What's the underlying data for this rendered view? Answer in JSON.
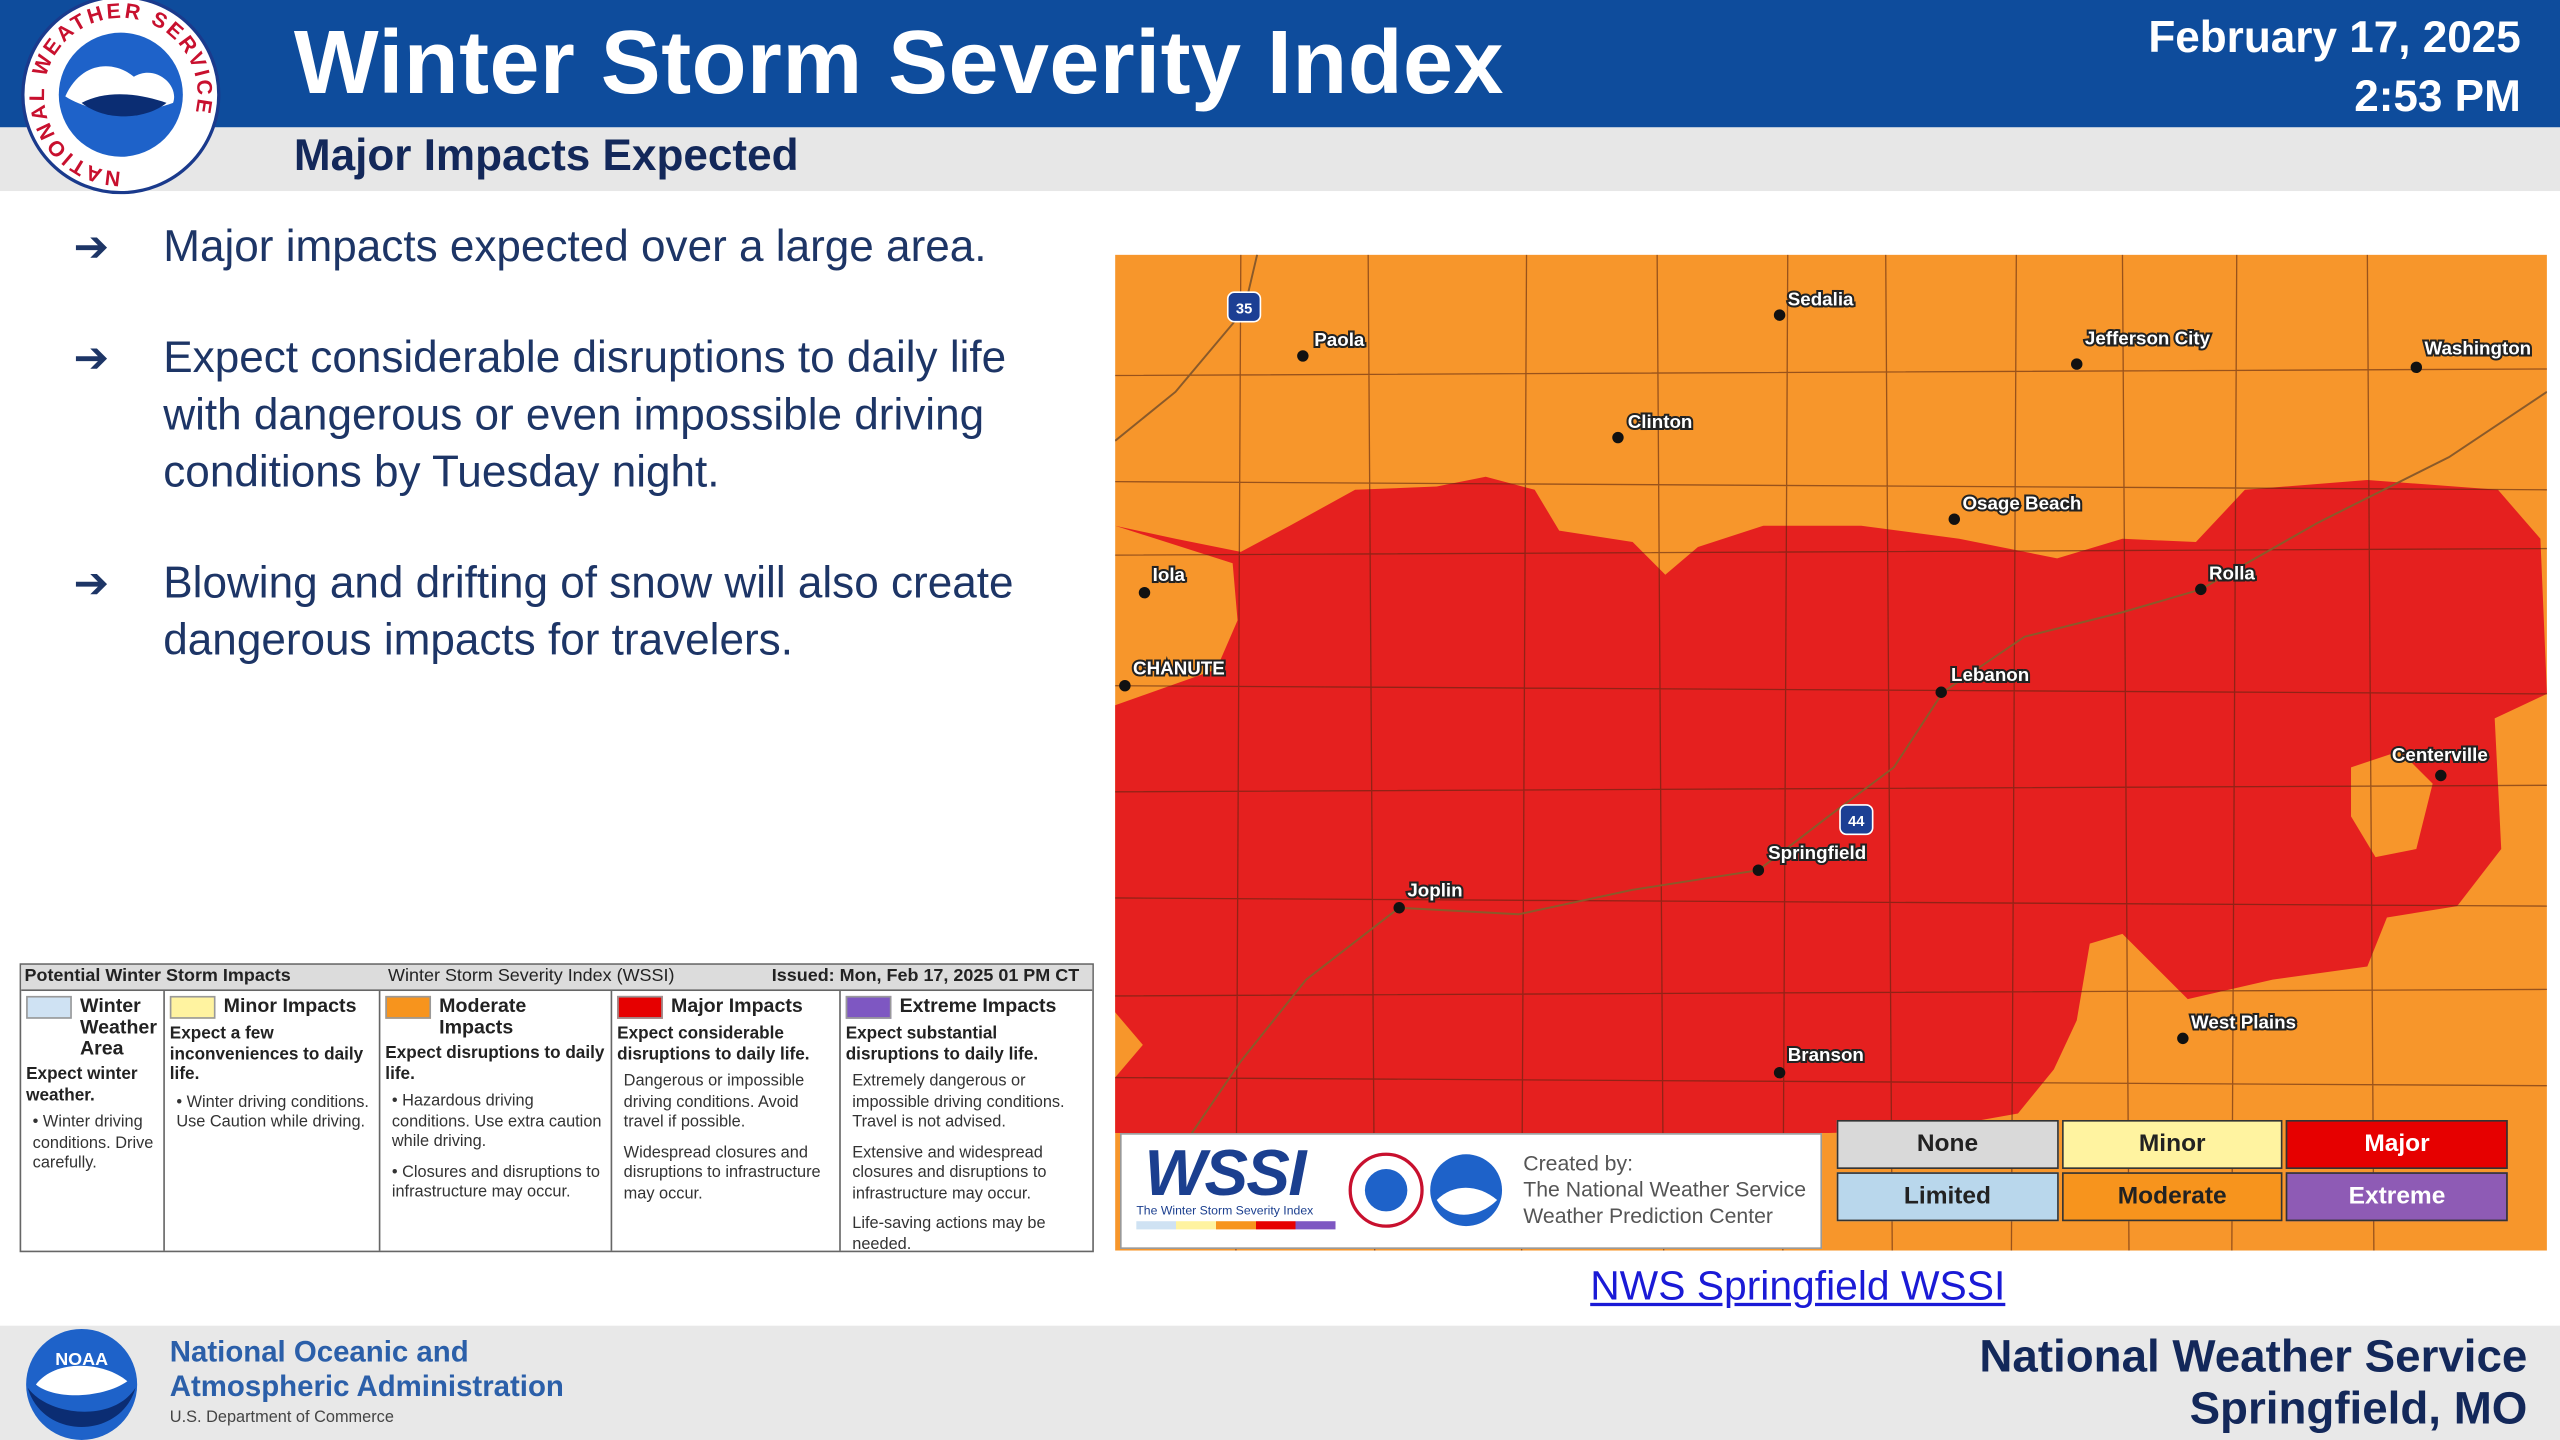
{
  "header": {
    "title": "Winter Storm Severity Index",
    "date": "February 17, 2025",
    "time": "2:53 PM",
    "subtitle": "Major Impacts Expected",
    "logo_text": "NATIONAL WEATHER SERVICE"
  },
  "bullets": [
    "Major impacts expected over a large area.",
    "Expect considerable disruptions to daily life with dangerous or even impossible driving conditions by Tuesday night.",
    "Blowing and drifting of snow will also create dangerous impacts for travelers."
  ],
  "impact_table": {
    "title": "Potential Winter Storm Impacts",
    "subtitle": "Winter Storm Severity Index (WSSI)",
    "issued": "Issued: Mon, Feb 17, 2025 01 PM CT",
    "columns": [
      {
        "title": "Winter Weather Area",
        "summary": "Expect winter weather.",
        "bullets": [
          "• Winter driving conditions. Drive carefully."
        ]
      },
      {
        "title": "Minor Impacts",
        "summary": "Expect a few inconveniences to daily life.",
        "bullets": [
          "• Winter driving conditions. Use Caution while driving."
        ]
      },
      {
        "title": "Moderate Impacts",
        "summary": "Expect disruptions to daily life.",
        "bullets": [
          "• Hazardous driving conditions. Use extra caution while driving.",
          "• Closures and disruptions to infrastructure may occur."
        ]
      },
      {
        "title": "Major Impacts",
        "summary": "Expect considerable disruptions to daily life.",
        "bullets": [
          "Dangerous or impossible driving conditions. Avoid travel if possible.",
          "Widespread closures and disruptions to infrastructure may occur."
        ]
      },
      {
        "title": "Extreme Impacts",
        "summary": "Expect substantial disruptions to daily life.",
        "bullets": [
          "Extremely dangerous or impossible driving conditions. Travel is not advised.",
          "Extensive and widespread closures and disruptions to infrastructure may occur.",
          "Life-saving actions may be needed."
        ]
      }
    ]
  },
  "map": {
    "cities": [
      "Sedalia",
      "Jefferson City",
      "Washington",
      "Paola",
      "Clinton",
      "Osage Beach",
      "Iola",
      "Rolla",
      "CHANUTE",
      "Lebanon",
      "Centerville",
      "Springfield",
      "Joplin",
      "West Plains",
      "Branson"
    ],
    "interstates": [
      "35",
      "44"
    ],
    "legend": [
      "None",
      "Minor",
      "Major",
      "Limited",
      "Moderate",
      "Extreme"
    ],
    "wssi_logo": "WSSI",
    "wssi_caption": "The Winter Storm Severity Index",
    "credit": [
      "Created by:",
      "The National Weather Service",
      "Weather Prediction Center"
    ]
  },
  "link": "NWS Springfield WSSI",
  "footer": {
    "noaa_logo": "NOAA",
    "noaa_lines": [
      "National Oceanic and",
      "Atmospheric Administration"
    ],
    "noaa_sub": "U.S. Department of Commerce",
    "office": [
      "National Weather Service",
      "Springfield, MO"
    ]
  }
}
